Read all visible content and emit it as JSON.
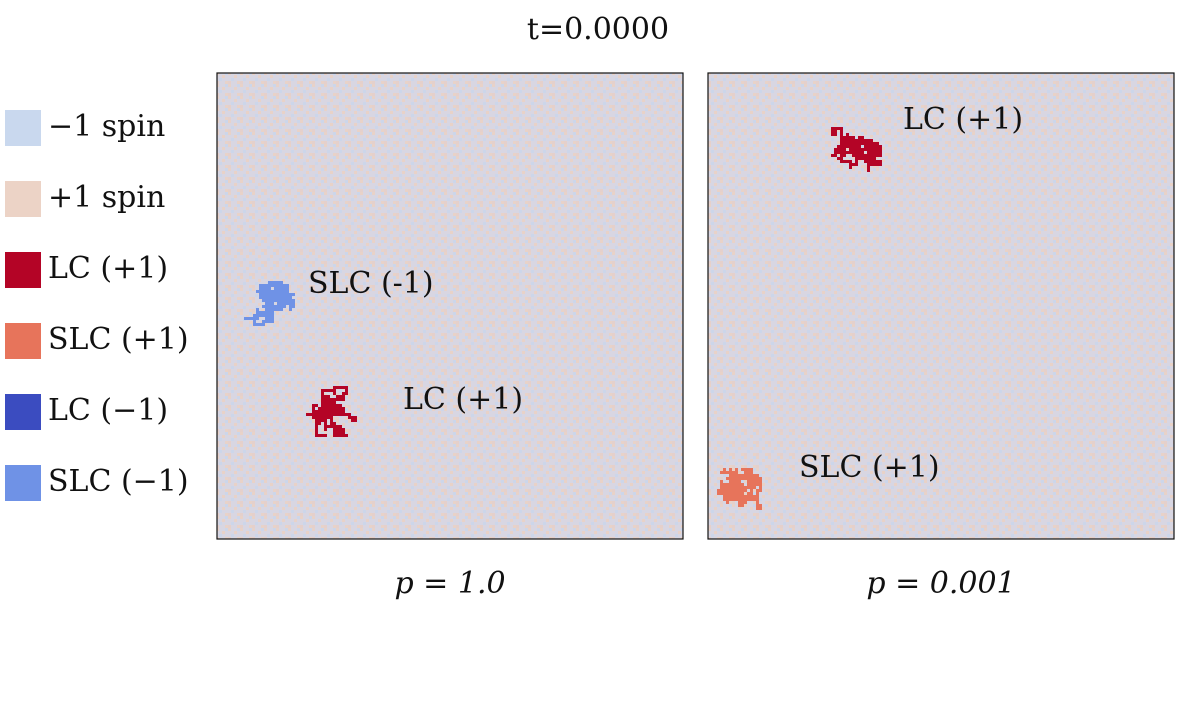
{
  "title": "t=0.0000",
  "legend": [
    {
      "label": "−1 spin",
      "color": "#c9d8ee"
    },
    {
      "label": "+1 spin",
      "color": "#ecd3c6"
    },
    {
      "label": "LC (+1)",
      "color": "#b40426"
    },
    {
      "label": "SLC (+1)",
      "color": "#e7745b"
    },
    {
      "label": "LC (−1)",
      "color": "#3b4cc0"
    },
    {
      "label": "SLC (−1)",
      "color": "#6f92e6"
    }
  ],
  "panels": [
    {
      "caption": "p = 1.0",
      "annotations": [
        {
          "text": "SLC (-1)",
          "color": "#6f92e6"
        },
        {
          "text": "LC (+1)",
          "color": "#b40426"
        }
      ]
    },
    {
      "caption": "p = 0.001",
      "annotations": [
        {
          "text": "LC (+1)",
          "color": "#b40426"
        },
        {
          "text": "SLC (+1)",
          "color": "#e7745b"
        }
      ]
    }
  ]
}
